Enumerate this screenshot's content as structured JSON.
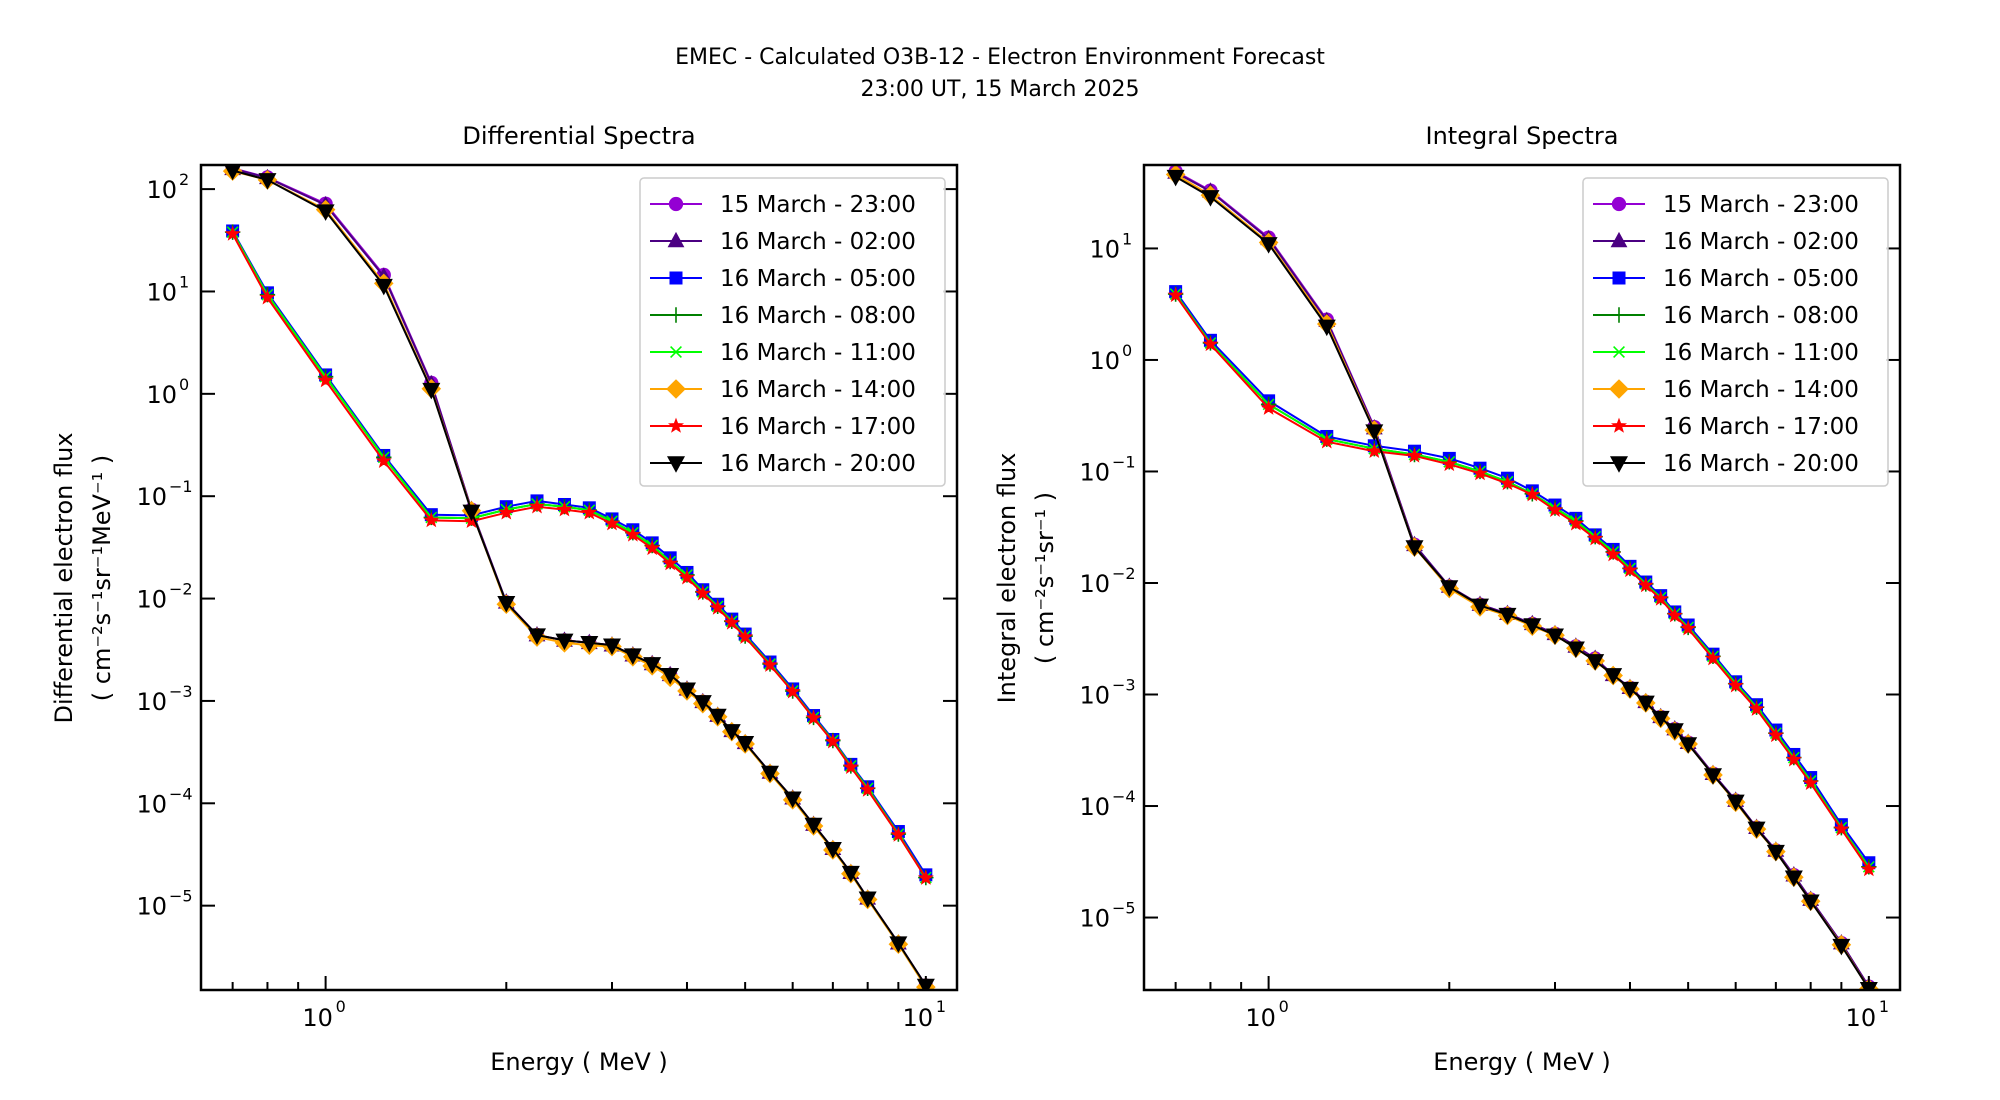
{
  "figure": {
    "title_line1": "EMEC - Calculated O3B-12 - Electron Environment Forecast",
    "title_line2": "23:00 UT, 15 March 2025"
  },
  "chart_data": [
    {
      "type": "line",
      "title": "Differential Spectra",
      "xlabel": "Energy ( MeV )",
      "ylabel_line1": "Differential electron flux",
      "ylabel_line2": "( cm⁻²s⁻¹sr⁻¹MeV⁻¹ )",
      "xscale": "log",
      "yscale": "log",
      "xlim": [
        0.62,
        11.27
      ],
      "ylim": [
        1.5e-06,
        172
      ],
      "xticks": [
        {
          "value": 1,
          "label": "10",
          "exp": "0"
        },
        {
          "value": 10,
          "label": "10",
          "exp": "1"
        }
      ],
      "yticks": [
        {
          "value": 100,
          "label": "10",
          "exp": "2"
        },
        {
          "value": 10,
          "label": "10",
          "exp": "1"
        },
        {
          "value": 1,
          "label": "10",
          "exp": "0"
        },
        {
          "value": 0.1,
          "label": "10",
          "exp": "−1"
        },
        {
          "value": 0.01,
          "label": "10",
          "exp": "−2"
        },
        {
          "value": 0.001,
          "label": "10",
          "exp": "−3"
        },
        {
          "value": 0.0001,
          "label": "10",
          "exp": "−4"
        },
        {
          "value": 1e-05,
          "label": "10",
          "exp": "−5"
        }
      ],
      "grid": false,
      "legend_position": "top-right",
      "x": [
        0.7,
        0.8,
        1.0,
        1.25,
        1.5,
        1.75,
        2.0,
        2.25,
        2.5,
        2.75,
        3.0,
        3.25,
        3.5,
        3.75,
        4.0,
        4.25,
        4.5,
        4.75,
        5.0,
        5.5,
        6.0,
        6.5,
        7.0,
        7.5,
        8.0,
        9.0,
        10.0
      ],
      "series": [
        {
          "name": "15 March - 23:00",
          "color": "#9400D3",
          "marker": "circle",
          "values": [
            160,
            130,
            72,
            14.5,
            1.28,
            0.074,
            0.0092,
            0.0044,
            0.0039,
            0.0037,
            0.0035,
            0.0028,
            0.0023,
            0.0018,
            0.0013,
            0.00098,
            0.00072,
            0.00051,
            0.00039,
            0.0002,
            0.000112,
            6.2e-05,
            3.6e-05,
            2.1e-05,
            1.18e-05,
            4.3e-06,
            1.66e-06
          ]
        },
        {
          "name": "16 March - 02:00",
          "color": "#4B0082",
          "marker": "triangle-up",
          "values": [
            158,
            129,
            70,
            14.0,
            1.25,
            0.074,
            0.0092,
            0.0044,
            0.0039,
            0.0037,
            0.0035,
            0.0028,
            0.0023,
            0.0018,
            0.0013,
            0.00098,
            0.00072,
            0.00051,
            0.00039,
            0.0002,
            0.000112,
            6.2e-05,
            3.6e-05,
            2.1e-05,
            1.18e-05,
            4.3e-06,
            1.66e-06
          ]
        },
        {
          "name": "16 March - 05:00",
          "color": "#0000FF",
          "marker": "square",
          "values": [
            39,
            9.7,
            1.53,
            0.25,
            0.066,
            0.065,
            0.079,
            0.09,
            0.083,
            0.077,
            0.06,
            0.047,
            0.035,
            0.025,
            0.018,
            0.0122,
            0.0088,
            0.0063,
            0.0045,
            0.0024,
            0.00131,
            0.00072,
            0.00042,
            0.00024,
            0.000145,
            5.3e-05,
            2e-05
          ]
        },
        {
          "name": "16 March - 08:00",
          "color": "#008000",
          "marker": "plus",
          "values": [
            38,
            9.3,
            1.47,
            0.24,
            0.062,
            0.061,
            0.074,
            0.084,
            0.079,
            0.073,
            0.057,
            0.044,
            0.033,
            0.023,
            0.017,
            0.0116,
            0.0084,
            0.006,
            0.0043,
            0.0023,
            0.00125,
            0.00069,
            0.00041,
            0.000232,
            0.00014,
            5e-05,
            1.88e-05
          ]
        },
        {
          "name": "16 March - 11:00",
          "color": "#00FF00",
          "marker": "x",
          "values": [
            38,
            9.3,
            1.47,
            0.24,
            0.062,
            0.061,
            0.074,
            0.084,
            0.079,
            0.073,
            0.057,
            0.044,
            0.033,
            0.023,
            0.017,
            0.0116,
            0.0084,
            0.006,
            0.0043,
            0.0023,
            0.00125,
            0.00069,
            0.00041,
            0.000232,
            0.00014,
            5e-05,
            1.88e-05
          ]
        },
        {
          "name": "16 March - 14:00",
          "color": "#FFA500",
          "marker": "diamond",
          "values": [
            150,
            123,
            63,
            12.0,
            1.12,
            0.072,
            0.0088,
            0.0042,
            0.0037,
            0.0035,
            0.0034,
            0.0027,
            0.0022,
            0.0017,
            0.00125,
            0.00094,
            0.0007,
            0.0005,
            0.00038,
            0.000195,
            0.000108,
            6e-05,
            3.5e-05,
            2.05e-05,
            1.15e-05,
            4.2e-06,
            1.6e-06
          ]
        },
        {
          "name": "16 March - 17:00",
          "color": "#FF0000",
          "marker": "star",
          "values": [
            36.5,
            8.7,
            1.35,
            0.22,
            0.058,
            0.057,
            0.069,
            0.079,
            0.074,
            0.069,
            0.054,
            0.042,
            0.031,
            0.022,
            0.016,
            0.0112,
            0.0081,
            0.0058,
            0.0042,
            0.00224,
            0.00123,
            0.00068,
            0.0004,
            0.000225,
            0.000135,
            4.9e-05,
            1.86e-05
          ]
        },
        {
          "name": "16 March - 20:00",
          "color": "#000000",
          "marker": "triangle-down",
          "values": [
            152,
            123,
            61,
            11.4,
            1.1,
            0.071,
            0.0091,
            0.0044,
            0.0039,
            0.0037,
            0.0035,
            0.0028,
            0.0023,
            0.0018,
            0.0013,
            0.00098,
            0.00072,
            0.00051,
            0.00039,
            0.0002,
            0.000112,
            6.2e-05,
            3.6e-05,
            2.1e-05,
            1.18e-05,
            4.3e-06,
            1.66e-06
          ]
        }
      ]
    },
    {
      "type": "line",
      "title": "Integral Spectra",
      "xlabel": "Energy ( MeV )",
      "ylabel_line1": "Integral electron flux",
      "ylabel_line2": "( cm⁻²s⁻¹sr⁻¹ )",
      "xscale": "log",
      "yscale": "log",
      "xlim": [
        0.62,
        11.27
      ],
      "ylim": [
        2.24e-06,
        56
      ],
      "xticks": [
        {
          "value": 1,
          "label": "10",
          "exp": "0"
        },
        {
          "value": 10,
          "label": "10",
          "exp": "1"
        }
      ],
      "yticks": [
        {
          "value": 10,
          "label": "10",
          "exp": "1"
        },
        {
          "value": 1,
          "label": "10",
          "exp": "0"
        },
        {
          "value": 0.1,
          "label": "10",
          "exp": "−1"
        },
        {
          "value": 0.01,
          "label": "10",
          "exp": "−2"
        },
        {
          "value": 0.001,
          "label": "10",
          "exp": "−3"
        },
        {
          "value": 0.0001,
          "label": "10",
          "exp": "−4"
        },
        {
          "value": 1e-05,
          "label": "10",
          "exp": "−5"
        }
      ],
      "grid": false,
      "legend_position": "top-right",
      "x": [
        0.7,
        0.8,
        1.0,
        1.25,
        1.5,
        1.75,
        2.0,
        2.25,
        2.5,
        2.75,
        3.0,
        3.25,
        3.5,
        3.75,
        4.0,
        4.25,
        4.5,
        4.75,
        5.0,
        5.5,
        6.0,
        6.5,
        7.0,
        7.5,
        8.0,
        9.0,
        10.0
      ],
      "series": [
        {
          "name": "15 March - 23:00",
          "color": "#9400D3",
          "marker": "circle",
          "values": [
            49,
            33,
            12.5,
            2.3,
            0.25,
            0.022,
            0.0093,
            0.0064,
            0.0053,
            0.0043,
            0.0035,
            0.0027,
            0.0021,
            0.0015,
            0.00115,
            0.00086,
            0.00063,
            0.00049,
            0.00037,
            0.000195,
            0.000112,
            6.4e-05,
            4e-05,
            2.4e-05,
            1.45e-05,
            5.9e-06,
            2.4e-06
          ]
        },
        {
          "name": "16 March - 02:00",
          "color": "#4B0082",
          "marker": "triangle-up",
          "values": [
            48,
            32.5,
            12.2,
            2.25,
            0.245,
            0.022,
            0.0093,
            0.0064,
            0.0053,
            0.0043,
            0.0035,
            0.0027,
            0.0021,
            0.0015,
            0.00115,
            0.00086,
            0.00063,
            0.00049,
            0.00037,
            0.000195,
            0.000112,
            6.4e-05,
            4e-05,
            2.4e-05,
            1.45e-05,
            5.9e-06,
            2.4e-06
          ]
        },
        {
          "name": "16 March - 05:00",
          "color": "#0000FF",
          "marker": "square",
          "values": [
            4.1,
            1.5,
            0.43,
            0.206,
            0.17,
            0.152,
            0.131,
            0.107,
            0.087,
            0.067,
            0.05,
            0.038,
            0.027,
            0.02,
            0.0141,
            0.0102,
            0.0077,
            0.0055,
            0.0042,
            0.0023,
            0.0013,
            0.00081,
            0.00048,
            0.00029,
            0.00018,
            6.8e-05,
            3.1e-05
          ]
        },
        {
          "name": "16 March - 08:00",
          "color": "#008000",
          "marker": "plus",
          "values": [
            3.9,
            1.42,
            0.4,
            0.195,
            0.16,
            0.142,
            0.122,
            0.1,
            0.081,
            0.063,
            0.047,
            0.036,
            0.026,
            0.019,
            0.0135,
            0.0098,
            0.0074,
            0.0053,
            0.004,
            0.0022,
            0.00125,
            0.00077,
            0.00045,
            0.000272,
            0.000168,
            6.4e-05,
            2.85e-05
          ]
        },
        {
          "name": "16 March - 11:00",
          "color": "#00FF00",
          "marker": "x",
          "values": [
            3.9,
            1.42,
            0.4,
            0.195,
            0.16,
            0.142,
            0.122,
            0.1,
            0.081,
            0.063,
            0.047,
            0.036,
            0.026,
            0.019,
            0.0135,
            0.0098,
            0.0074,
            0.0053,
            0.004,
            0.0022,
            0.00125,
            0.00077,
            0.00045,
            0.000272,
            0.000168,
            6.4e-05,
            2.85e-05
          ]
        },
        {
          "name": "16 March - 14:00",
          "color": "#FFA500",
          "marker": "diamond",
          "values": [
            46,
            30,
            11.3,
            2.1,
            0.235,
            0.021,
            0.0089,
            0.0061,
            0.0051,
            0.0041,
            0.0034,
            0.0026,
            0.002,
            0.00148,
            0.00112,
            0.00084,
            0.00061,
            0.00047,
            0.00036,
            0.00019,
            0.000108,
            6.2e-05,
            3.9e-05,
            2.3e-05,
            1.4e-05,
            5.7e-06,
            2.3e-06
          ]
        },
        {
          "name": "16 March - 17:00",
          "color": "#FF0000",
          "marker": "star",
          "values": [
            3.8,
            1.38,
            0.37,
            0.185,
            0.152,
            0.138,
            0.116,
            0.096,
            0.078,
            0.062,
            0.045,
            0.034,
            0.025,
            0.018,
            0.013,
            0.0095,
            0.0072,
            0.0051,
            0.0039,
            0.0021,
            0.0012,
            0.00074,
            0.00043,
            0.00026,
            0.00016,
            6.2e-05,
            2.7e-05
          ]
        },
        {
          "name": "16 March - 20:00",
          "color": "#000000",
          "marker": "triangle-down",
          "values": [
            44,
            29,
            11.0,
            2.0,
            0.23,
            0.021,
            0.0092,
            0.0063,
            0.0052,
            0.0042,
            0.0034,
            0.0026,
            0.002,
            0.0015,
            0.00113,
            0.00085,
            0.00062,
            0.00048,
            0.00036,
            0.00019,
            0.00011,
            6.3e-05,
            3.9e-05,
            2.3e-05,
            1.4e-05,
            5.6e-06,
            2.3e-06
          ]
        }
      ]
    }
  ]
}
